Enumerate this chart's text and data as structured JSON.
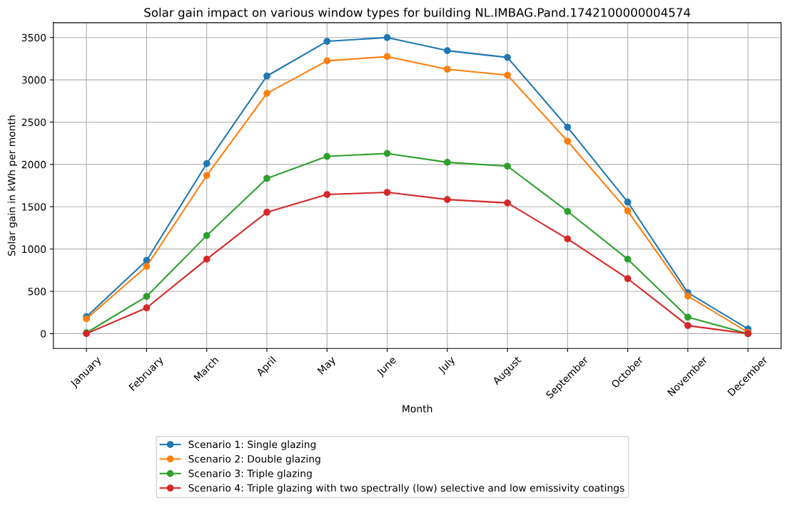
{
  "chart_data": {
    "type": "line",
    "title": "Solar gain impact on various window types for building NL.IMBAG.Pand.1742100000004574",
    "xlabel": "Month",
    "ylabel": "Solar gain in kWh per month",
    "categories": [
      "January",
      "February",
      "March",
      "April",
      "May",
      "June",
      "July",
      "August",
      "September",
      "October",
      "November",
      "December"
    ],
    "series": [
      {
        "name": "Scenario 1: Single glazing",
        "color": "#1f77b4",
        "values": [
          200,
          865,
          2010,
          3045,
          3455,
          3500,
          3345,
          3265,
          2440,
          1555,
          485,
          55
        ]
      },
      {
        "name": "Scenario 2: Double glazing",
        "color": "#ff7f0e",
        "values": [
          175,
          795,
          1870,
          2840,
          3225,
          3275,
          3125,
          3055,
          2275,
          1450,
          445,
          15
        ]
      },
      {
        "name": "Scenario 3: Triple glazing",
        "color": "#2ca02c",
        "values": [
          10,
          440,
          1160,
          1835,
          2095,
          2130,
          2025,
          1980,
          1445,
          880,
          195,
          0
        ]
      },
      {
        "name": "Scenario 4: Triple glazing with two spectrally (low) selective and low emissivity coatings",
        "color": "#d62728",
        "values": [
          0,
          305,
          880,
          1435,
          1645,
          1670,
          1585,
          1545,
          1120,
          650,
          95,
          0
        ]
      }
    ],
    "ylim": [
      -175,
      3675
    ],
    "yticks": [
      0,
      500,
      1000,
      1500,
      2000,
      2500,
      3000,
      3500
    ],
    "grid": true,
    "legend": "bottom",
    "marker": "circle",
    "line_style": "solid"
  }
}
